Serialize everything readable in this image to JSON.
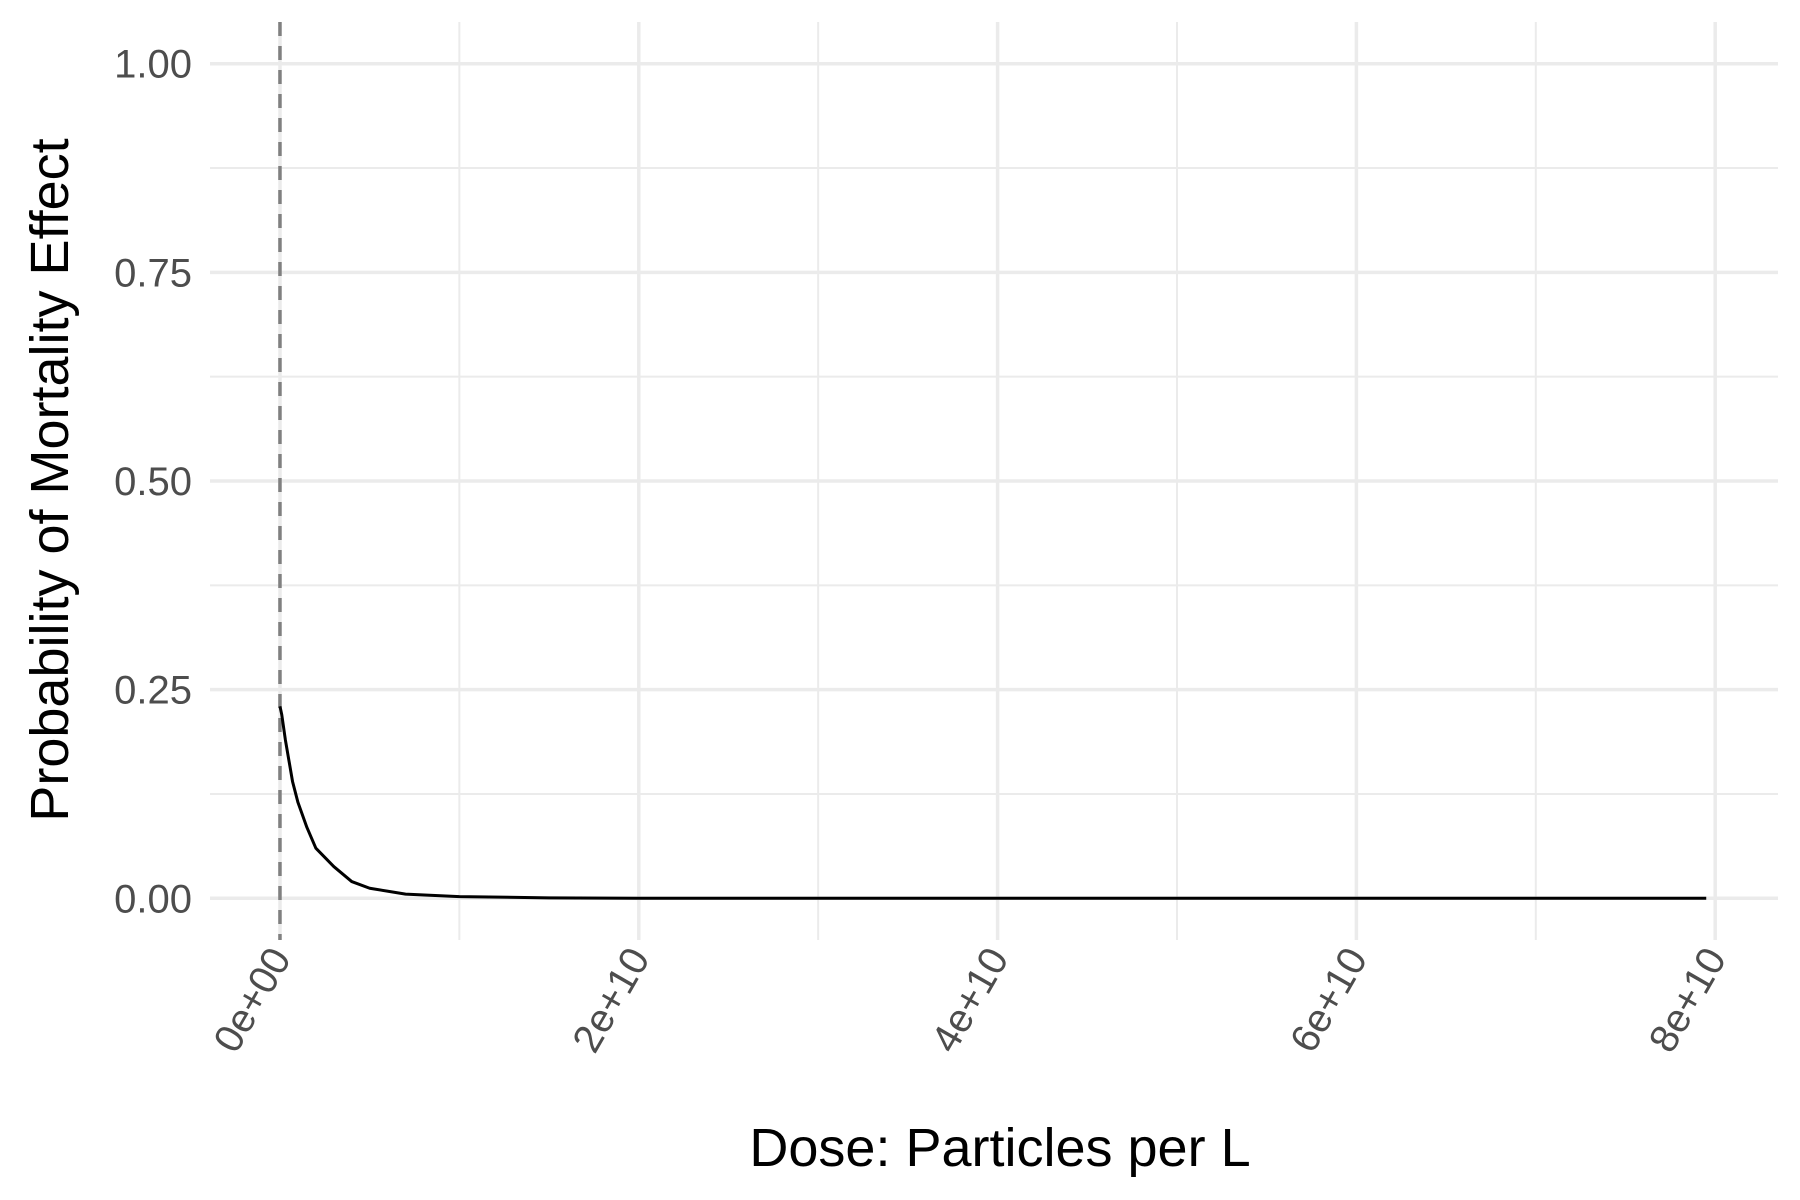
{
  "chart_data": {
    "type": "line",
    "title": "",
    "xlabel": "Dose: Particles per L",
    "ylabel": "Probability of Mortality Effect",
    "xlim": [
      -3900000000.0,
      83500000000.0
    ],
    "ylim": [
      -0.05,
      1.05
    ],
    "x_ticks": [
      {
        "value": 0,
        "label": "0e+00"
      },
      {
        "value": 20000000000.0,
        "label": "2e+10"
      },
      {
        "value": 40000000000.0,
        "label": "4e+10"
      },
      {
        "value": 60000000000.0,
        "label": "6e+10"
      },
      {
        "value": 80000000000.0,
        "label": "8e+10"
      }
    ],
    "x_minor_ticks": [
      10000000000.0,
      30000000000.0,
      50000000000.0,
      70000000000.0
    ],
    "y_ticks": [
      {
        "value": 0.0,
        "label": "0.00"
      },
      {
        "value": 0.25,
        "label": "0.25"
      },
      {
        "value": 0.5,
        "label": "0.50"
      },
      {
        "value": 0.75,
        "label": "0.75"
      },
      {
        "value": 1.0,
        "label": "1.00"
      }
    ],
    "y_minor_ticks": [
      0.125,
      0.375,
      0.625,
      0.875
    ],
    "grid": true,
    "reference_line": {
      "x": 0,
      "style": "dashed",
      "color": "#808080"
    },
    "series": [
      {
        "color": "#000000",
        "x": [
          0,
          100000000.0,
          200000000.0,
          300000000.0,
          500000000.0,
          700000000.0,
          1000000000.0,
          1500000000.0,
          2000000000.0,
          3000000000.0,
          4000000000.0,
          5000000000.0,
          7000000000.0,
          10000000000.0,
          15000000000.0,
          20000000000.0,
          30000000000.0,
          40000000000.0,
          50000000000.0,
          60000000000.0,
          70000000000.0,
          79500000000.0
        ],
        "y": [
          0.23,
          0.22,
          0.205,
          0.19,
          0.165,
          0.14,
          0.115,
          0.085,
          0.06,
          0.038,
          0.02,
          0.012,
          0.005,
          0.002,
          0.0005,
          0.0,
          0.0,
          0.0,
          0.0,
          0.0,
          0.0,
          0.0
        ]
      }
    ]
  }
}
